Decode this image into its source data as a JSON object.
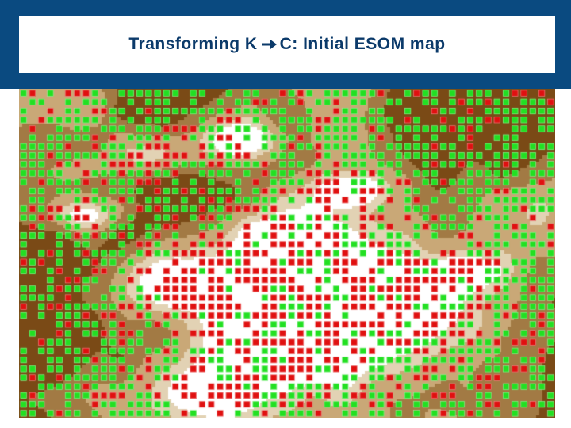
{
  "slide": {
    "title_prefix": "Transforming K",
    "title_suffix": "C: Initial ESOM map"
  },
  "map": {
    "kind": "ESOM U-matrix with class markers",
    "grid_cols": 60,
    "grid_rows": 37,
    "palette": {
      "terrain_dark": "#7a4a16",
      "terrain_mid": "#a27a44",
      "terrain_light": "#c9a877",
      "terrain_pale": "#e2d2b4",
      "valley": "#ffffff",
      "marker_class_green": "#22e022",
      "marker_class_red": "#e01010"
    },
    "marker_classes": [
      "green",
      "red"
    ]
  },
  "colors": {
    "header_band": "#0a4a80",
    "title_text": "#0b3a6a"
  }
}
